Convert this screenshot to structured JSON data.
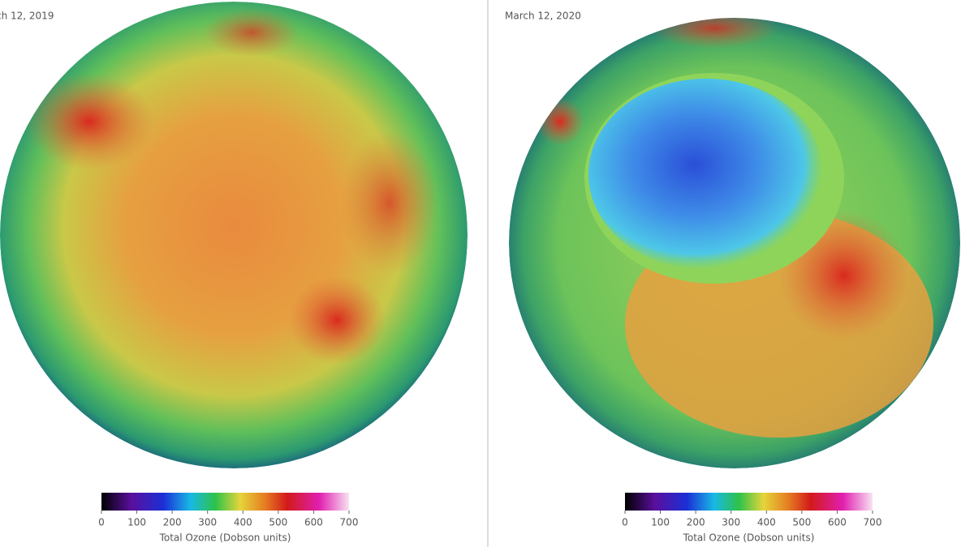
{
  "panels": [
    {
      "date": "ch 12, 2019",
      "colorbar": {
        "ticks": [
          0,
          100,
          200,
          300,
          400,
          500,
          600,
          700
        ],
        "label": "Total Ozone (Dobson units)"
      }
    },
    {
      "date": "March 12, 2020",
      "colorbar": {
        "ticks": [
          0,
          100,
          200,
          300,
          400,
          500,
          600,
          700
        ],
        "label": "Total Ozone (Dobson units)"
      }
    }
  ]
}
